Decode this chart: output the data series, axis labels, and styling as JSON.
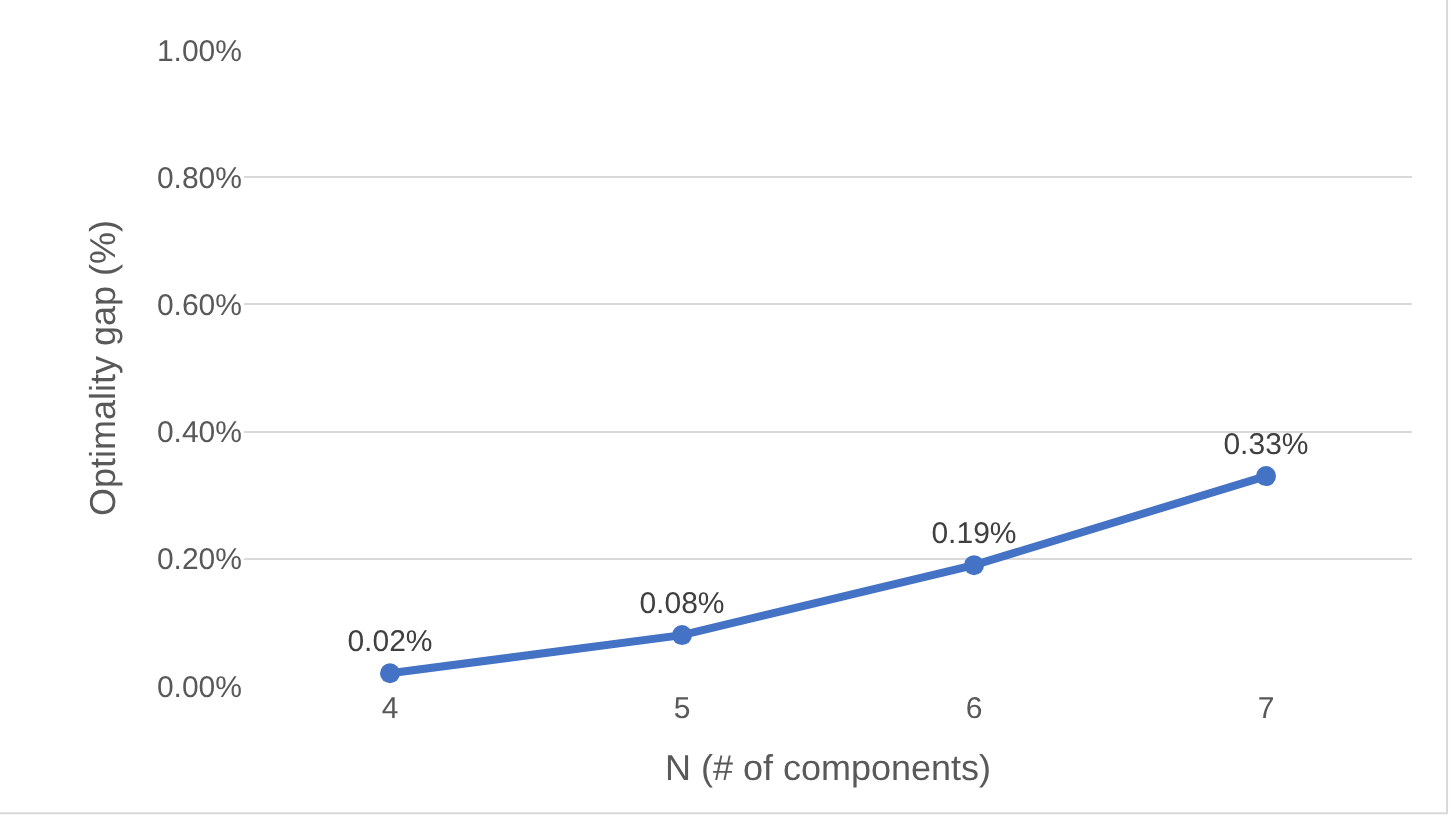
{
  "chart_data": {
    "type": "line",
    "xlabel": "N (# of components)",
    "ylabel": "Optimality gap (%)",
    "categories": [
      "4",
      "5",
      "6",
      "7"
    ],
    "series": [
      {
        "color": "#4472c4",
        "values": [
          0.02,
          0.08,
          0.19,
          0.33
        ],
        "value_labels": [
          "0.02%",
          "0.08%",
          "0.19%",
          "0.33%"
        ]
      }
    ],
    "ylim": [
      0,
      1
    ],
    "yticks": [
      {
        "value": 0,
        "label": "0.00%"
      },
      {
        "value": 0.2,
        "label": "0.20%"
      },
      {
        "value": 0.4,
        "label": "0.40%"
      },
      {
        "value": 0.6,
        "label": "0.60%"
      },
      {
        "value": 0.8,
        "label": "0.80%"
      },
      {
        "value": 1,
        "label": "1.00%"
      }
    ],
    "grid": "y",
    "legend": false,
    "marker": "circle",
    "line_style": "solid"
  }
}
